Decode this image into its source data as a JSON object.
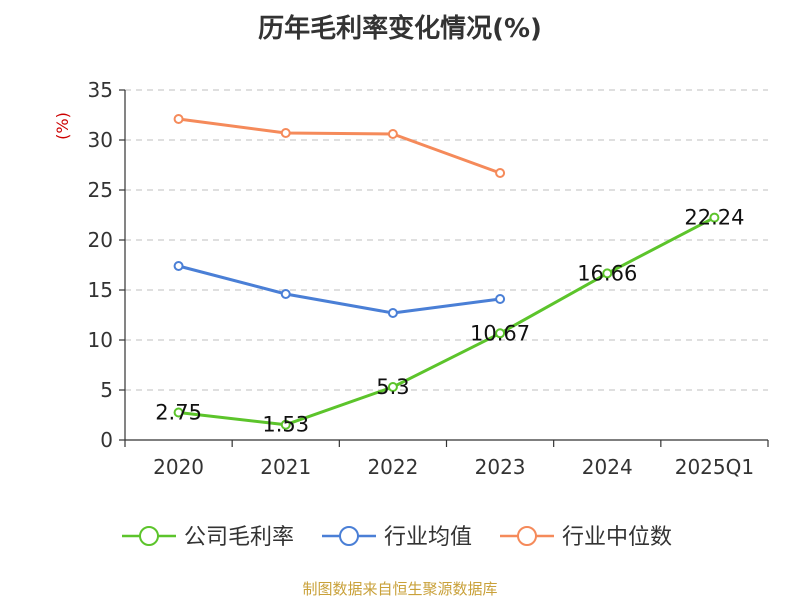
{
  "title": "历年毛利率变化情况(%)",
  "source": "制图数据来自恒生聚源数据库",
  "chart_data": {
    "type": "line",
    "title": "历年毛利率变化情况(%)",
    "ylabel": "(%)",
    "xlabel": "",
    "ylim": [
      0,
      35
    ],
    "yticks": [
      0,
      5,
      10,
      15,
      20,
      25,
      30,
      35
    ],
    "grid": true,
    "legend_position": "bottom",
    "categories": [
      "2020",
      "2021",
      "2022",
      "2023",
      "2024",
      "2025Q1"
    ],
    "series": [
      {
        "name": "公司毛利率",
        "color": "#5cc42b",
        "values": [
          2.75,
          1.53,
          5.3,
          10.67,
          16.66,
          22.24
        ],
        "labels": [
          "2.75",
          "1.53",
          "5.3",
          "10.67",
          "16.66",
          "22.24"
        ]
      },
      {
        "name": "行业均值",
        "color": "#4a7fd6",
        "values": [
          17.4,
          14.6,
          12.7,
          14.1,
          null,
          null
        ]
      },
      {
        "name": "行业中位数",
        "color": "#f58a5a",
        "values": [
          32.1,
          30.7,
          30.6,
          26.7,
          null,
          null
        ]
      }
    ]
  },
  "colors": {
    "axis": "#333333",
    "grid": "#cccccc",
    "unit": "#cc0000",
    "source": "#c9a13a"
  }
}
